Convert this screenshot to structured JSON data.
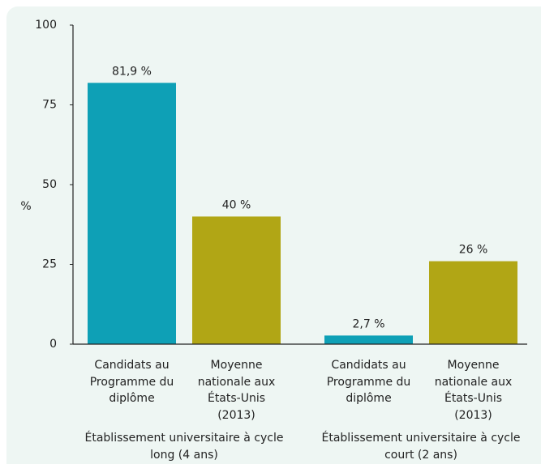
{
  "chart_data": {
    "type": "bar",
    "ylabel": "%",
    "categories": [
      "Candidats au Programme du diplôme",
      "Moyenne nationale aux États-Unis (2013)",
      "Candidats au Programme du diplôme",
      "Moyenne nationale aux États-Unis (2013)"
    ],
    "groups": [
      "Établissement universitaire à cycle long (4 ans)",
      "Établissement universitaire à cycle court (2 ans)"
    ],
    "values": [
      81.9,
      40,
      2.7,
      26
    ],
    "value_labels": [
      "81,9 %",
      "40 %",
      "2,7 %",
      "26 %"
    ],
    "colors": [
      "#0ea0b6",
      "#b1a615",
      "#0ea0b6",
      "#b1a615"
    ],
    "ylim": [
      0,
      100
    ],
    "yticks": [
      0,
      25,
      50,
      75,
      100
    ],
    "grid": false
  }
}
